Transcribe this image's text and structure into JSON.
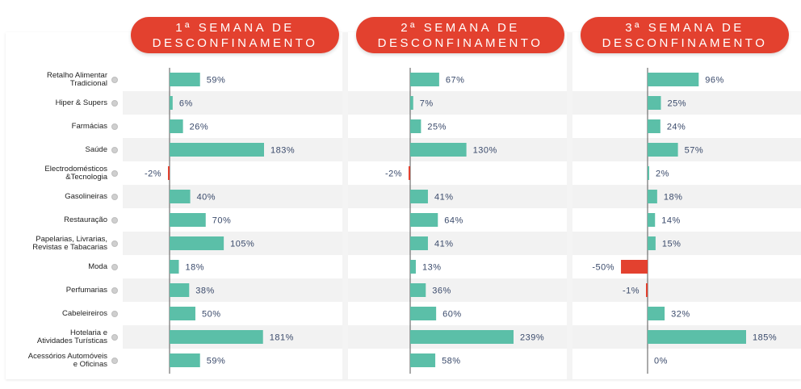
{
  "headers": [
    {
      "line1": "1ª SEMANA DE",
      "line2": "DESCONFINAMENTO"
    },
    {
      "line1": "2ª SEMANA DE",
      "line2": "DESCONFINAMENTO"
    },
    {
      "line1": "3ª SEMANA DE",
      "line2": "DESCONFINAMENTO"
    }
  ],
  "colors": {
    "header": "#e3412f",
    "positive": "#5bbfa8",
    "negative": "#e3412f",
    "axis": "#555555",
    "label": "#3a4a6b",
    "stripe": "#f2f2f2"
  },
  "chart_data": {
    "type": "bar",
    "orientation": "horizontal",
    "categories": [
      "Retalho Alimentar\nTradicional",
      "Hiper & Supers",
      "Farmácias",
      "Saúde",
      "Electrodomésticos\n&Tecnologia",
      "Gasolineiras",
      "Restauração",
      "Papelarias, Livrarias,\nRevistas e Tabacarias",
      "Moda",
      "Perfumarias",
      "Cabeleireiros",
      "Hotelaria e\nAtividades Turísticas",
      "Acessórios Automóveis\ne Oficinas"
    ],
    "series": [
      {
        "name": "1ª SEMANA DE DESCONFINAMENTO",
        "values": [
          59,
          6,
          26,
          183,
          -2,
          40,
          70,
          105,
          18,
          38,
          50,
          181,
          59
        ],
        "labels": [
          "59%",
          "6%",
          "26%",
          "183%",
          "-2%",
          "40%",
          "70%",
          "105%",
          "18%",
          "38%",
          "50%",
          "181%",
          "59%"
        ]
      },
      {
        "name": "2ª SEMANA DE DESCONFINAMENTO",
        "values": [
          67,
          7,
          25,
          130,
          -2,
          41,
          64,
          41,
          13,
          36,
          60,
          239,
          58
        ],
        "labels": [
          "67%",
          "7%",
          "25%",
          "130%",
          "-2%",
          "41%",
          "64%",
          "41%",
          "13%",
          "36%",
          "60%",
          "239%",
          "58%"
        ]
      },
      {
        "name": "3ª SEMANA DE DESCONFINAMENTO",
        "values": [
          96,
          25,
          24,
          57,
          2,
          18,
          14,
          15,
          -50,
          -1,
          32,
          185,
          0
        ],
        "labels": [
          "96%",
          "25%",
          "24%",
          "57%",
          "2%",
          "18%",
          "14%",
          "15%",
          "-50%",
          "-1%",
          "32%",
          "185%",
          "0%"
        ]
      }
    ],
    "unit": "%"
  }
}
